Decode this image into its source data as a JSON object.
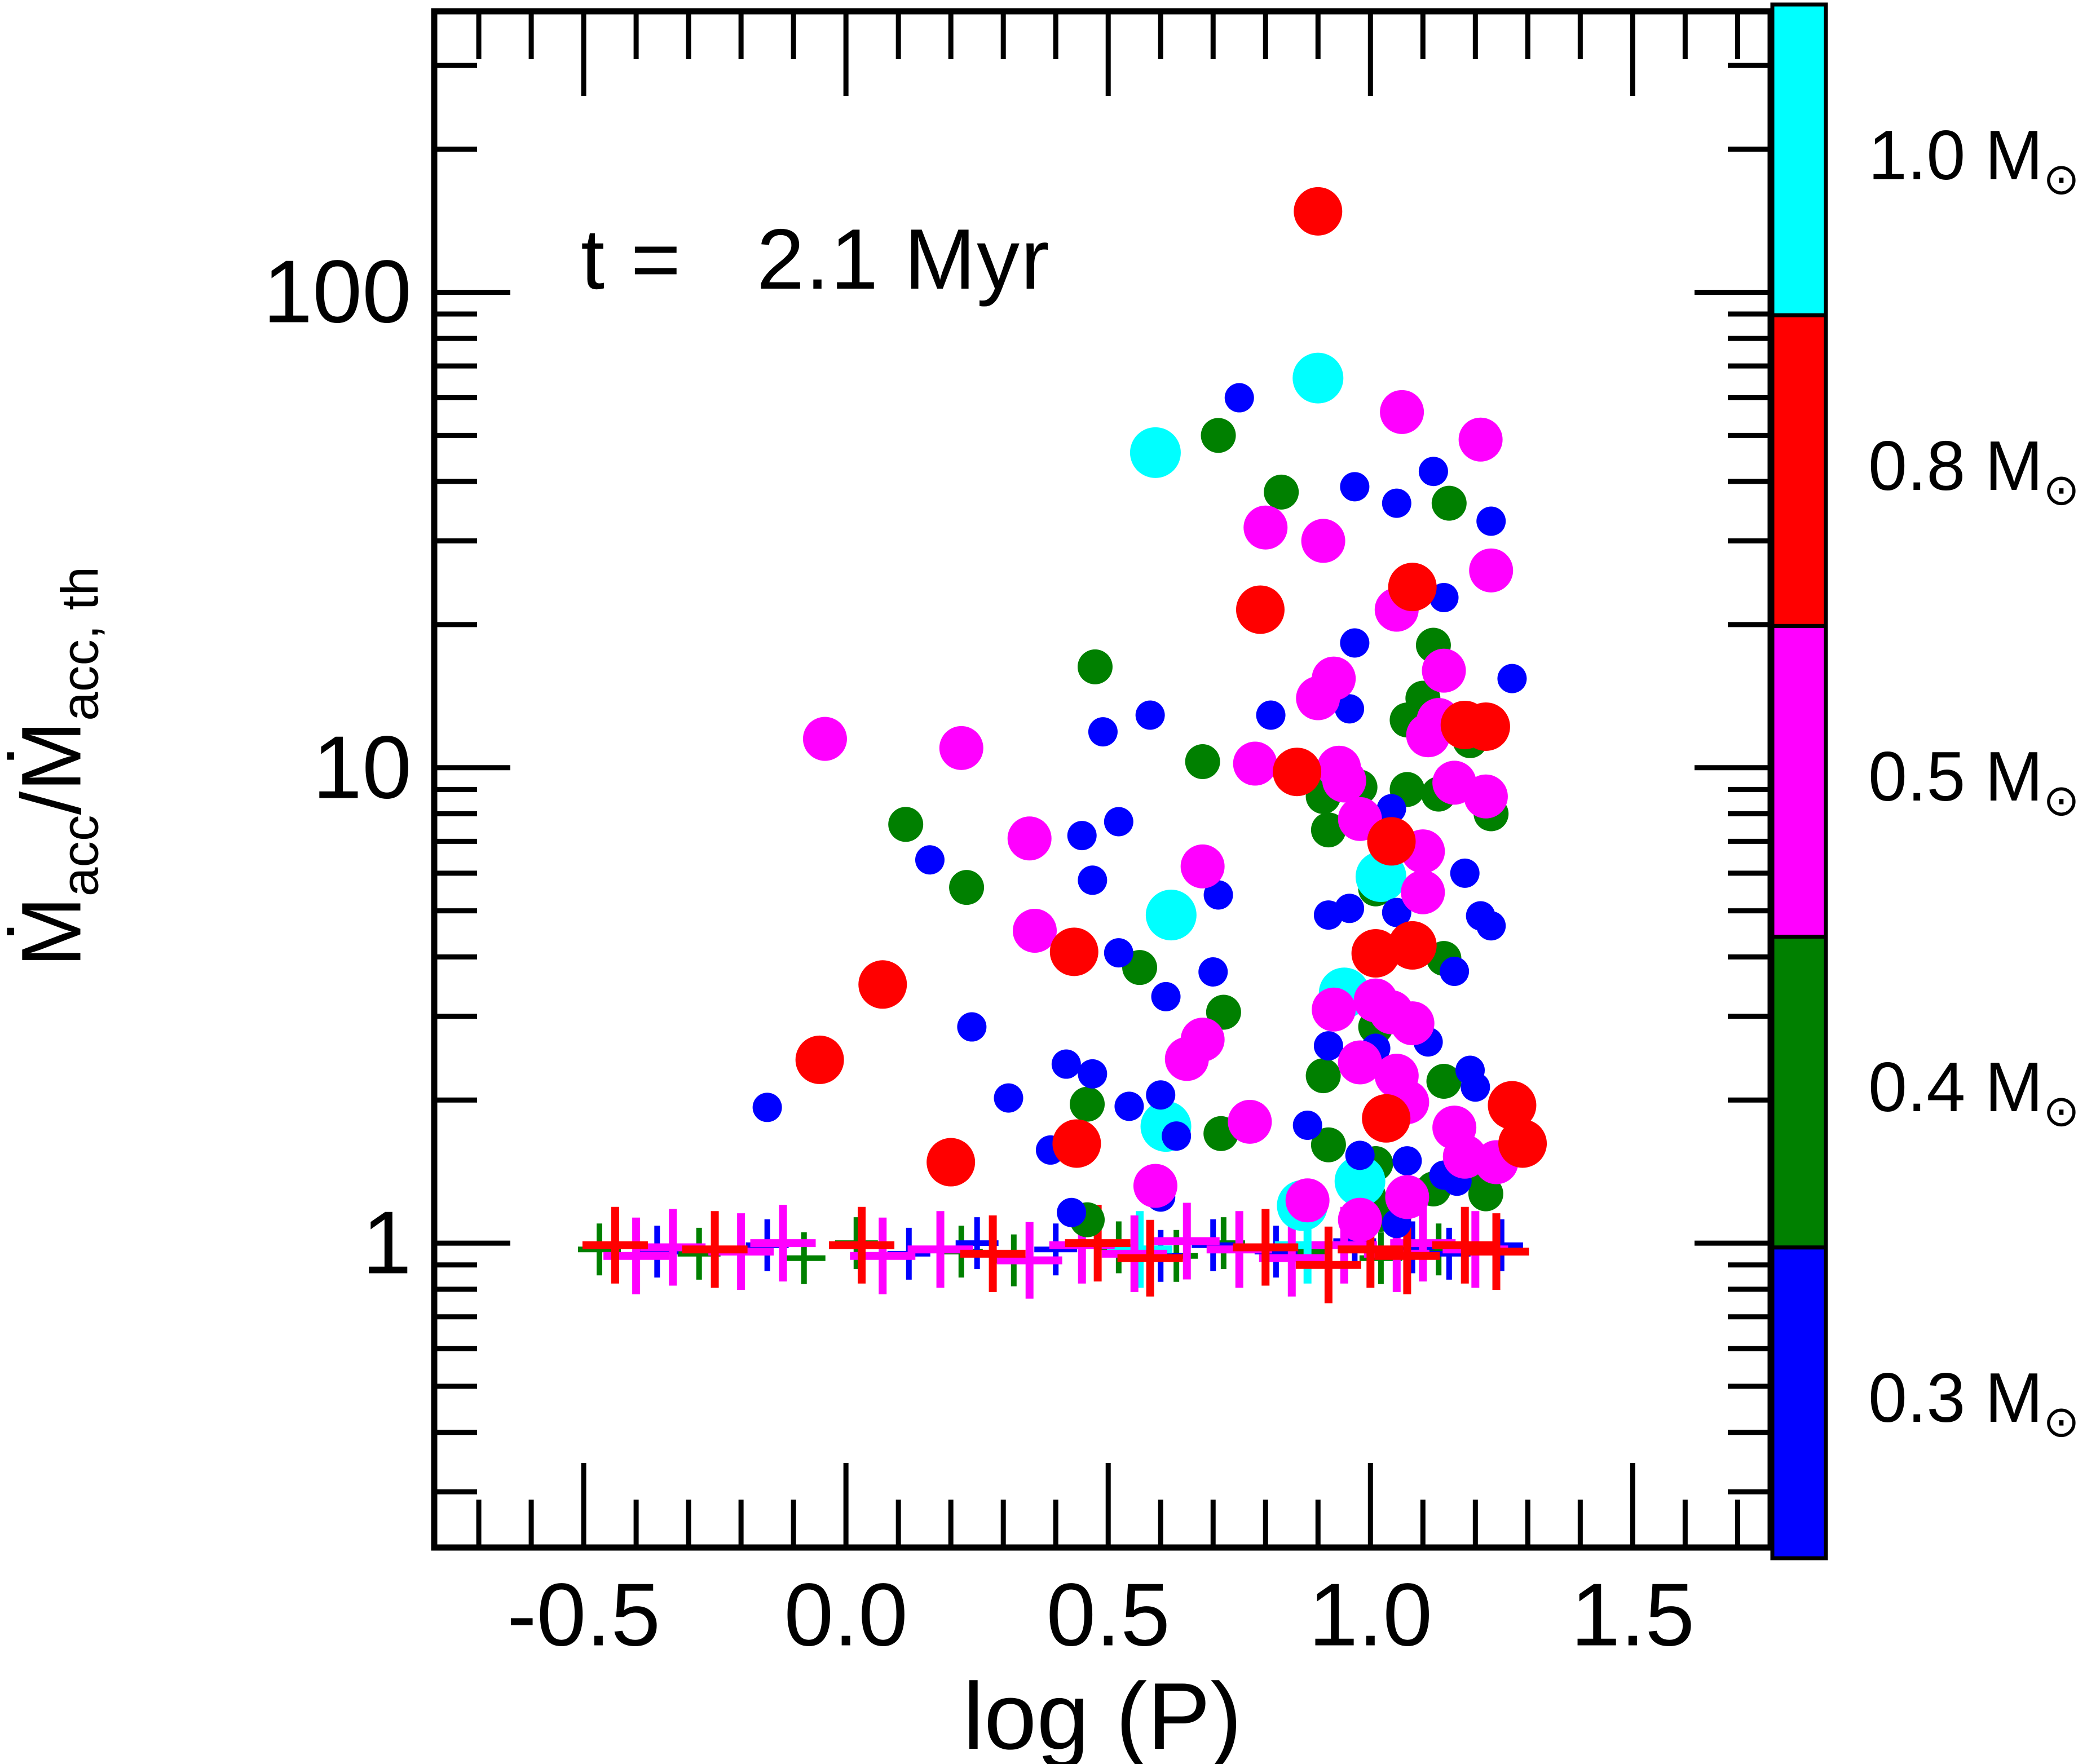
{
  "title": "t =   2.1 Myr",
  "x_axis": {
    "label": "log (P)",
    "tick_values": [
      -0.5,
      0.0,
      0.5,
      1.0,
      1.5
    ],
    "tick_labels": [
      "-0.5",
      "0.0",
      "0.5",
      "1.0",
      "1.5"
    ],
    "minor_step": 0.1,
    "range": [
      -0.785,
      1.763
    ]
  },
  "y_axis": {
    "label_parts": [
      [
        "Ṁ",
        false
      ],
      [
        "acc",
        true
      ],
      [
        "/Ṁ",
        false
      ],
      [
        "acc, th",
        true
      ]
    ],
    "tick_values": [
      100,
      10,
      1
    ],
    "tick_labels": [
      "100",
      "10",
      "1"
    ],
    "scale": "log",
    "range": [
      0.229,
      390
    ]
  },
  "colorbar": {
    "mass_prefix": "M",
    "sun_symbol": "⊙",
    "segments": [
      {
        "mass": "1.0",
        "color": "#00ffff"
      },
      {
        "mass": "0.8",
        "color": "#ff0000"
      },
      {
        "mass": "0.5",
        "color": "#ff00ff"
      },
      {
        "mass": "0.4",
        "color": "#008000"
      },
      {
        "mass": "0.3",
        "color": "#0000ff"
      }
    ]
  },
  "chart_data": {
    "type": "scatter",
    "title": "t = 2.1 Myr",
    "xlabel": "log (P)",
    "ylabel": "Macc_dot / Macc_th_dot",
    "x_range": [
      -0.785,
      1.763
    ],
    "y_range": [
      0.229,
      390
    ],
    "y_scale": "log",
    "grid": false,
    "legend_position": "right-colorbar",
    "series": [
      {
        "name": "0.4 Msun",
        "mass": 0.4,
        "color": "#008000",
        "marker": "circle",
        "radius": 31,
        "points": [
          [
            0.71,
            50
          ],
          [
            0.83,
            38
          ],
          [
            1.15,
            36
          ],
          [
            1.12,
            18.1
          ],
          [
            0.475,
            16.3
          ],
          [
            1.1,
            14
          ],
          [
            1.07,
            12.6
          ],
          [
            1.19,
            11.4
          ],
          [
            1.11,
            12.0
          ],
          [
            0.68,
            10.3
          ],
          [
            0.114,
            7.6
          ],
          [
            0.98,
            9.1
          ],
          [
            1.07,
            9.0
          ],
          [
            1.13,
            8.8
          ],
          [
            0.91,
            8.7
          ],
          [
            1.23,
            8.0
          ],
          [
            0.92,
            7.4
          ],
          [
            0.23,
            5.6
          ],
          [
            1.01,
            5.56
          ],
          [
            0.56,
            3.8
          ],
          [
            1.14,
            3.97
          ],
          [
            0.72,
            3.06
          ],
          [
            1.01,
            2.85
          ],
          [
            0.91,
            2.25
          ],
          [
            1.14,
            2.19
          ],
          [
            0.46,
            1.96
          ],
          [
            0.715,
            1.7
          ],
          [
            0.92,
            1.61
          ],
          [
            1.01,
            1.47
          ],
          [
            1.18,
            1.42
          ],
          [
            1.22,
            1.27
          ],
          [
            0.996,
            1.26
          ],
          [
            1.12,
            1.3
          ],
          [
            0.46,
            1.12
          ],
          [
            1.02,
            1.15
          ]
        ]
      },
      {
        "name": "1.0 Msun",
        "mass": 1.0,
        "color": "#00ffff",
        "marker": "circle",
        "radius": 45,
        "points": [
          [
            0.9,
            66
          ],
          [
            0.59,
            46
          ],
          [
            1.02,
            5.9
          ],
          [
            0.62,
            4.9
          ],
          [
            0.95,
            3.36
          ],
          [
            0.61,
            1.76
          ],
          [
            0.98,
            1.35
          ],
          [
            0.87,
            1.2
          ]
        ]
      },
      {
        "name": "0.3 Msun",
        "mass": 0.3,
        "color": "#0000ff",
        "marker": "circle",
        "radius": 26,
        "points": [
          [
            0.75,
            60
          ],
          [
            1.12,
            42
          ],
          [
            0.97,
            39
          ],
          [
            1.05,
            36
          ],
          [
            1.23,
            33
          ],
          [
            1.14,
            22.8
          ],
          [
            0.97,
            18.3
          ],
          [
            1.27,
            15.4
          ],
          [
            0.96,
            13.3
          ],
          [
            0.49,
            11.9
          ],
          [
            0.58,
            12.9
          ],
          [
            0.81,
            12.9
          ],
          [
            1.16,
            9.1
          ],
          [
            1.04,
            8.2
          ],
          [
            0.16,
            6.4
          ],
          [
            0.45,
            7.2
          ],
          [
            0.52,
            7.7
          ],
          [
            0.47,
            5.8
          ],
          [
            0.71,
            5.4
          ],
          [
            1.18,
            6.0
          ],
          [
            0.96,
            5.06
          ],
          [
            1.05,
            4.96
          ],
          [
            1.21,
            4.88
          ],
          [
            1.23,
            4.65
          ],
          [
            0.92,
            4.9
          ],
          [
            0.52,
            4.08
          ],
          [
            0.7,
            3.72
          ],
          [
            0.61,
            3.3
          ],
          [
            1.16,
            3.73
          ],
          [
            0.24,
            2.85
          ],
          [
            1.11,
            2.65
          ],
          [
            0.92,
            2.6
          ],
          [
            1.01,
            2.57
          ],
          [
            0.42,
            2.38
          ],
          [
            0.47,
            2.27
          ],
          [
            1.19,
            2.31
          ],
          [
            1.2,
            2.13
          ],
          [
            0.31,
            2.02
          ],
          [
            0.54,
            1.94
          ],
          [
            0.6,
            2.05
          ],
          [
            -0.15,
            1.93
          ],
          [
            0.88,
            1.77
          ],
          [
            0.63,
            1.68
          ],
          [
            0.39,
            1.57
          ],
          [
            0.98,
            1.53
          ],
          [
            1.07,
            1.49
          ],
          [
            1.165,
            1.35
          ],
          [
            1.14,
            1.39
          ],
          [
            0.43,
            1.16
          ],
          [
            1.05,
            1.1
          ],
          [
            0.6,
            1.25
          ]
        ]
      },
      {
        "name": "0.5 Msun",
        "mass": 0.5,
        "color": "#ff00ff",
        "marker": "circle",
        "radius": 39,
        "points": [
          [
            1.06,
            56
          ],
          [
            1.21,
            49
          ],
          [
            0.8,
            32
          ],
          [
            0.91,
            30
          ],
          [
            1.23,
            26
          ],
          [
            1.05,
            21.5
          ],
          [
            1.14,
            16
          ],
          [
            0.93,
            15.4
          ],
          [
            0.9,
            14
          ],
          [
            1.13,
            12.6
          ],
          [
            1.11,
            11.7
          ],
          [
            -0.04,
            11.5
          ],
          [
            0.22,
            11.0
          ],
          [
            0.78,
            10.2
          ],
          [
            0.94,
            10.0
          ],
          [
            1.16,
            9.3
          ],
          [
            0.95,
            9.4
          ],
          [
            0.98,
            7.8
          ],
          [
            1.22,
            8.7
          ],
          [
            1.1,
            6.67
          ],
          [
            0.35,
            7.1
          ],
          [
            0.68,
            6.2
          ],
          [
            1.1,
            5.47
          ],
          [
            0.36,
            4.54
          ],
          [
            1.01,
            3.24
          ],
          [
            1.04,
            3.06
          ],
          [
            1.08,
            2.9
          ],
          [
            0.93,
            3.1
          ],
          [
            0.68,
            2.68
          ],
          [
            0.65,
            2.44
          ],
          [
            0.98,
            2.4
          ],
          [
            1.05,
            2.25
          ],
          [
            1.07,
            1.98
          ],
          [
            1.16,
            1.75
          ],
          [
            0.77,
            1.8
          ],
          [
            1.18,
            1.52
          ],
          [
            1.24,
            1.48
          ],
          [
            0.59,
            1.32
          ],
          [
            1.07,
            1.25
          ],
          [
            0.88,
            1.23
          ],
          [
            0.98,
            1.12
          ]
        ]
      },
      {
        "name": "0.8 Msun",
        "mass": 0.8,
        "color": "#ff0000",
        "marker": "circle",
        "radius": 43,
        "points": [
          [
            0.9,
            148
          ],
          [
            1.08,
            24
          ],
          [
            0.79,
            21.5
          ],
          [
            1.18,
            12.3
          ],
          [
            1.22,
            12.2
          ],
          [
            0.86,
            9.8
          ],
          [
            1.04,
            7.0
          ],
          [
            1.08,
            4.23
          ],
          [
            1.01,
            4.07
          ],
          [
            0.435,
            4.1
          ],
          [
            0.07,
            3.5
          ],
          [
            -0.05,
            2.43
          ],
          [
            1.03,
            1.83
          ],
          [
            0.44,
            1.62
          ],
          [
            0.2,
            1.48
          ],
          [
            1.27,
            1.95
          ],
          [
            1.29,
            1.62
          ]
        ]
      }
    ],
    "limit_series": [
      {
        "name": "0.4 Msun limits",
        "mass": 0.4,
        "color": "#008000",
        "marker": "cross",
        "size": "small",
        "points": [
          [
            -0.47,
            0.97
          ],
          [
            -0.28,
            0.95
          ],
          [
            -0.08,
            0.93
          ],
          [
            0.02,
            1.0
          ],
          [
            0.22,
            0.96
          ],
          [
            0.32,
            0.92
          ],
          [
            0.52,
            0.98
          ],
          [
            0.63,
            0.94
          ],
          [
            0.72,
            1.0
          ],
          [
            0.88,
            0.96
          ],
          [
            1.02,
            0.93
          ],
          [
            1.13,
            0.97
          ]
        ]
      },
      {
        "name": "0.3 Msun limits",
        "mass": 0.3,
        "color": "#0000ff",
        "marker": "cross",
        "size": "small",
        "points": [
          [
            -0.36,
            0.96
          ],
          [
            -0.15,
            0.99
          ],
          [
            0.12,
            0.95
          ],
          [
            0.25,
            1.0
          ],
          [
            0.4,
            0.97
          ],
          [
            0.6,
            0.94
          ],
          [
            0.7,
            0.99
          ],
          [
            0.82,
            0.96
          ],
          [
            0.97,
            1.01
          ],
          [
            1.08,
            0.98
          ],
          [
            1.15,
            0.95
          ],
          [
            1.25,
            0.99
          ]
        ]
      },
      {
        "name": "1.0 Msun limits",
        "mass": 1.0,
        "color": "#00ffff",
        "marker": "cross",
        "size": "large",
        "points": [
          [
            0.56,
            0.97
          ],
          [
            0.88,
            0.99
          ]
        ]
      },
      {
        "name": "0.5 Msun limits",
        "mass": 0.5,
        "color": "#ff00ff",
        "marker": "cross",
        "size": "large",
        "points": [
          [
            -0.4,
            0.94
          ],
          [
            -0.33,
            0.98
          ],
          [
            -0.2,
            0.96
          ],
          [
            -0.12,
            1.0
          ],
          [
            0.07,
            0.94
          ],
          [
            0.18,
            0.97
          ],
          [
            0.35,
            0.92
          ],
          [
            0.45,
            0.99
          ],
          [
            0.55,
            0.95
          ],
          [
            0.65,
            1.01
          ],
          [
            0.75,
            0.97
          ],
          [
            0.85,
            0.93
          ],
          [
            0.95,
            0.99
          ],
          [
            1.05,
            0.95
          ],
          [
            1.1,
            1.0
          ],
          [
            1.2,
            0.97
          ]
        ]
      },
      {
        "name": "0.8 Msun limits",
        "mass": 0.8,
        "color": "#ff0000",
        "marker": "cross",
        "size": "large",
        "points": [
          [
            -0.44,
            0.99
          ],
          [
            -0.25,
            0.97
          ],
          [
            0.03,
            0.99
          ],
          [
            0.28,
            0.95
          ],
          [
            0.48,
            1.0
          ],
          [
            0.58,
            0.93
          ],
          [
            0.8,
            0.98
          ],
          [
            0.92,
            0.9
          ],
          [
            1.0,
            0.97
          ],
          [
            1.07,
            0.94
          ],
          [
            1.18,
            0.99
          ],
          [
            1.24,
            0.96
          ]
        ]
      }
    ]
  }
}
